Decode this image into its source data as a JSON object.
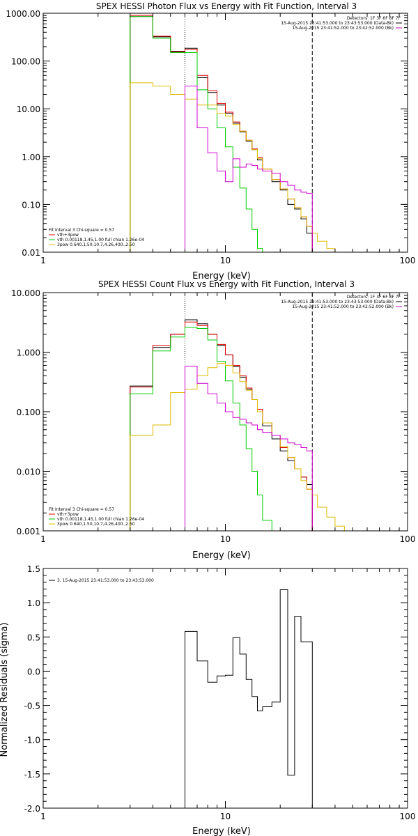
{
  "chart_data": [
    {
      "type": "line",
      "title": "SPEX HESSI Photon Flux vs Energy with Fit Function, Interval 3",
      "xlabel": "Energy (keV)",
      "ylabel": "",
      "xscale": "log",
      "yscale": "log",
      "xlim": [
        1,
        100
      ],
      "ylim": [
        0.01,
        1000
      ],
      "x_ticks": [
        {
          "v": 1,
          "label": "1"
        },
        {
          "v": 10,
          "label": "10"
        },
        {
          "v": 100,
          "label": "100"
        }
      ],
      "y_ticks": [
        {
          "v": 0.01,
          "label": "0.01"
        },
        {
          "v": 0.1,
          "label": "0.10"
        },
        {
          "v": 1,
          "label": "1.00"
        },
        {
          "v": 10,
          "label": "10.00"
        },
        {
          "v": 100,
          "label": "100.00"
        },
        {
          "v": 1000,
          "label": "1000.00"
        }
      ],
      "dotted_line_x": 6,
      "dashed_line_x": 30,
      "header_lines": [
        "Detectors: 1F 3F 6F 8F 7F",
        "15-Aug-2015 23:41:53.000 to 23:43:53.000 (Data-Bk)",
        "15-Aug-2015 23:41:52.000 to 23:42:52.000 (Bk)"
      ],
      "header_colors": [
        "",
        "#000000",
        "#d000d0"
      ],
      "legend_lines": [
        "Fit Interval 3   Chi-square = 0.57",
        "vth+3pow",
        "vth 0.00118,1.45,1.00  full chian 1.26e-04",
        "3pow 0.640,1.50,10.7,4.26,400.,2.50"
      ],
      "legend_colors": [
        "",
        "#e00000",
        "#00cc00",
        "#ddbb00"
      ],
      "edges": [
        3,
        4,
        5,
        6,
        7,
        8,
        9,
        10,
        11,
        12,
        13,
        14,
        15,
        16,
        18,
        20,
        22,
        24,
        26,
        28,
        30,
        32,
        36,
        40,
        45,
        50
      ],
      "series": [
        {
          "name": "",
          "color": "#000000",
          "values": [
            850,
            320,
            160,
            185,
            45,
            22,
            12,
            8,
            5,
            3.3,
            2.1,
            1.4,
            0.85,
            0.5,
            0.3,
            0.2,
            0.1,
            0.08,
            0.05,
            0.025,
            null,
            null,
            null,
            null,
            null
          ]
        },
        {
          "name": "vth+3pow",
          "color": "#e00000",
          "values": [
            900,
            330,
            155,
            175,
            50,
            24,
            13,
            8.5,
            5.3,
            3.4,
            2.2,
            1.45,
            0.95,
            0.55,
            0.33,
            0.21,
            0.13,
            0.085,
            0.055,
            0.035,
            null,
            null,
            null,
            null,
            null
          ]
        },
        {
          "name": "vth",
          "color": "#00cc00",
          "values": [
            850,
            300,
            150,
            150,
            25,
            10,
            4,
            1.6,
            0.6,
            0.22,
            0.08,
            0.03,
            0.012,
            null,
            null,
            null,
            null,
            null,
            null,
            null,
            null,
            null,
            null,
            null,
            null
          ]
        },
        {
          "name": "3pow",
          "color": "#ddbb00",
          "values": [
            35,
            30,
            20,
            16,
            12,
            12,
            8,
            7,
            4.7,
            3.4,
            2.2,
            1.4,
            0.9,
            0.55,
            0.33,
            0.21,
            0.13,
            0.085,
            0.055,
            0.035,
            0.025,
            0.017,
            0.012,
            0.01,
            null
          ]
        },
        {
          "name": "",
          "color": "#d000d0",
          "values": [
            null,
            null,
            null,
            30,
            4,
            1.2,
            0.5,
            0.3,
            0.9,
            0.6,
            0.7,
            0.65,
            0.55,
            0.5,
            0.45,
            0.3,
            0.25,
            0.2,
            0.18,
            0.17,
            null,
            null,
            null,
            null,
            null
          ]
        }
      ]
    },
    {
      "type": "line",
      "title": "SPEX HESSI Count Flux vs Energy with Fit Function, Interval 3",
      "xlabel": "Energy (keV)",
      "ylabel": "",
      "xscale": "log",
      "yscale": "log",
      "xlim": [
        1,
        100
      ],
      "ylim": [
        0.001,
        10
      ],
      "x_ticks": [
        {
          "v": 1,
          "label": "1"
        },
        {
          "v": 10,
          "label": "10"
        },
        {
          "v": 100,
          "label": "100"
        }
      ],
      "y_ticks": [
        {
          "v": 0.001,
          "label": "0.001"
        },
        {
          "v": 0.01,
          "label": "0.010"
        },
        {
          "v": 0.1,
          "label": "0.100"
        },
        {
          "v": 1,
          "label": "1.000"
        },
        {
          "v": 10,
          "label": "10.000"
        }
      ],
      "dotted_line_x": 6,
      "dashed_line_x": 30,
      "header_lines": [
        "Detectors: 1F 3F 6F 8F 7F",
        "15-Aug-2015 23:41:53.000 to 23:43:53.000 (Data-Bk)",
        "15-Aug-2015 23:41:52.000 to 23:42:52.000 (Bk)"
      ],
      "header_colors": [
        "",
        "#000000",
        "#d000d0"
      ],
      "legend_lines": [
        "Fit Interval 3   Chi-square = 0.57",
        "vth+3pow",
        "vth 0.00118,1.45,1.00  full chian 1.26e-04",
        "3pow 0.640,1.50,10.7,4.26,400.,2.50"
      ],
      "legend_colors": [
        "",
        "#e00000",
        "#00cc00",
        "#ddbb00"
      ],
      "edges": [
        3,
        4,
        5,
        6,
        7,
        8,
        9,
        10,
        11,
        12,
        13,
        14,
        15,
        16,
        18,
        20,
        22,
        24,
        26,
        28,
        30,
        32,
        36,
        40,
        45,
        50
      ],
      "series": [
        {
          "name": "",
          "color": "#000000",
          "values": [
            0.27,
            1.2,
            2.0,
            3.5,
            3.0,
            2.0,
            1.3,
            0.9,
            0.57,
            0.38,
            0.24,
            0.16,
            0.1,
            0.058,
            0.035,
            0.022,
            0.015,
            0.011,
            0.008,
            0.006,
            null,
            null,
            null,
            null,
            null
          ]
        },
        {
          "name": "vth+3pow",
          "color": "#e00000",
          "values": [
            0.26,
            1.3,
            2.0,
            3.2,
            2.8,
            2.0,
            1.35,
            0.9,
            0.6,
            0.4,
            0.25,
            0.16,
            0.11,
            0.065,
            0.04,
            0.025,
            0.017,
            0.011,
            0.008,
            0.005,
            null,
            null,
            null,
            null,
            null
          ]
        },
        {
          "name": "vth",
          "color": "#00cc00",
          "values": [
            0.2,
            1.05,
            1.8,
            2.6,
            2.5,
            1.6,
            0.7,
            0.33,
            0.14,
            0.06,
            0.024,
            0.01,
            0.004,
            0.0015,
            0.001,
            null,
            null,
            null,
            null,
            null,
            null,
            null,
            null,
            null,
            null
          ]
        },
        {
          "name": "3pow",
          "color": "#ddbb00",
          "values": [
            0.04,
            0.06,
            0.21,
            0.24,
            0.4,
            0.55,
            0.65,
            0.6,
            0.45,
            0.32,
            0.23,
            0.16,
            0.1,
            0.065,
            0.04,
            0.026,
            0.017,
            0.011,
            0.007,
            0.005,
            0.004,
            0.0025,
            0.0017,
            0.0012,
            null
          ]
        },
        {
          "name": "",
          "color": "#d000d0",
          "values": [
            null,
            null,
            null,
            0.58,
            0.3,
            0.2,
            0.14,
            0.1,
            0.08,
            0.075,
            0.065,
            0.06,
            0.05,
            0.045,
            0.04,
            0.035,
            0.03,
            0.028,
            0.025,
            0.022,
            null,
            null,
            null,
            null,
            null
          ]
        }
      ]
    },
    {
      "type": "line",
      "title": "",
      "xlabel": "Energy (keV)",
      "ylabel": "Normalized Residuals (sigma)",
      "xscale": "log",
      "yscale": "linear",
      "xlim": [
        1,
        100
      ],
      "ylim": [
        -2.0,
        1.5
      ],
      "x_ticks": [
        {
          "v": 1,
          "label": "1"
        },
        {
          "v": 10,
          "label": "10"
        },
        {
          "v": 100,
          "label": "100"
        }
      ],
      "y_ticks": [
        {
          "v": -2.0,
          "label": "-2.0"
        },
        {
          "v": -1.5,
          "label": "-1.5"
        },
        {
          "v": -1.0,
          "label": "-1.0"
        },
        {
          "v": -0.5,
          "label": "-0.5"
        },
        {
          "v": 0.0,
          "label": "0.0"
        },
        {
          "v": 0.5,
          "label": "0.5"
        },
        {
          "v": 1.0,
          "label": "1.0"
        },
        {
          "v": 1.5,
          "label": "1.5"
        }
      ],
      "legend_lines": [
        "3. 15-Aug-2015 23:41:53.000 to 23:43:53.000"
      ],
      "legend_colors": [
        "#000000"
      ],
      "edges": [
        6,
        7,
        8,
        9,
        10,
        11,
        12,
        13,
        14,
        15,
        16,
        18,
        20,
        22,
        24,
        26,
        28,
        30
      ],
      "series": [
        {
          "name": "",
          "color": "#000000",
          "values": [
            0.58,
            0.15,
            -0.16,
            -0.07,
            -0.06,
            0.49,
            0.25,
            -0.12,
            -0.37,
            -0.58,
            -0.52,
            -0.45,
            1.19,
            -1.52,
            0.8,
            0.43,
            0.43
          ]
        }
      ]
    }
  ]
}
